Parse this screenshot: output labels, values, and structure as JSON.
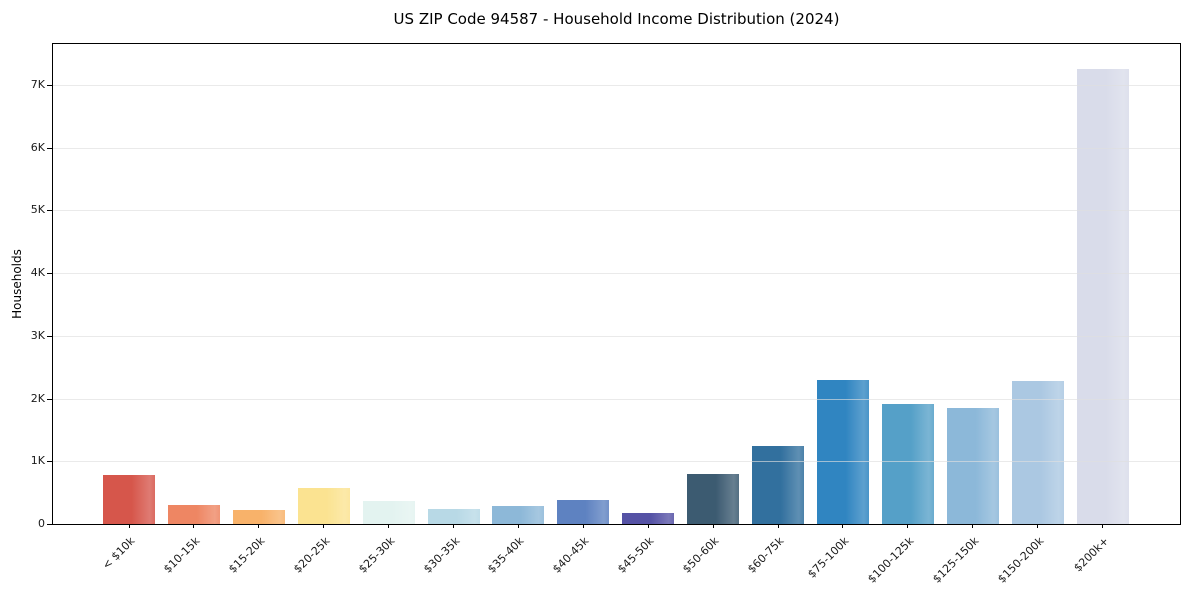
{
  "title": "US ZIP Code 94587 - Household Income Distribution (2024)",
  "colors": {
    "background": "#ffffff",
    "spine": "#000000",
    "gridline": "#e9e9e9",
    "text": "#1a1a1a"
  },
  "chart_data": {
    "type": "bar",
    "title": "US ZIP Code 94587 - Household Income Distribution (2024)",
    "xlabel": "",
    "ylabel": "Households",
    "categories": [
      "< $10k",
      "$10-15k",
      "$15-20k",
      "$20-25k",
      "$25-30k",
      "$30-35k",
      "$35-40k",
      "$40-45k",
      "$45-50k",
      "$50-60k",
      "$60-75k",
      "$75-100k",
      "$100-125k",
      "$125-150k",
      "$150-200k",
      "$200k+"
    ],
    "values": [
      780,
      300,
      220,
      570,
      370,
      240,
      290,
      380,
      180,
      790,
      1250,
      2300,
      1910,
      1850,
      2280,
      7250
    ],
    "bar_colors": [
      "#d6564b",
      "#ee8663",
      "#f8b26a",
      "#fbe391",
      "#e3f3f0",
      "#b8d9e6",
      "#8db8d8",
      "#5e82c1",
      "#5552a5",
      "#3c5b71",
      "#32709e",
      "#3085c1",
      "#55a0c8",
      "#8cb8d9",
      "#abc8e2",
      "#d9dcea"
    ],
    "ylim": [
      0,
      7650
    ],
    "ytick_values": [
      0,
      1000,
      2000,
      3000,
      4000,
      5000,
      6000,
      7000
    ],
    "ytick_labels": [
      "0",
      "1K",
      "2K",
      "3K",
      "4K",
      "5K",
      "6K",
      "7K"
    ],
    "grid": "horizontal",
    "legend": "none",
    "xtick_rotation": 45
  }
}
